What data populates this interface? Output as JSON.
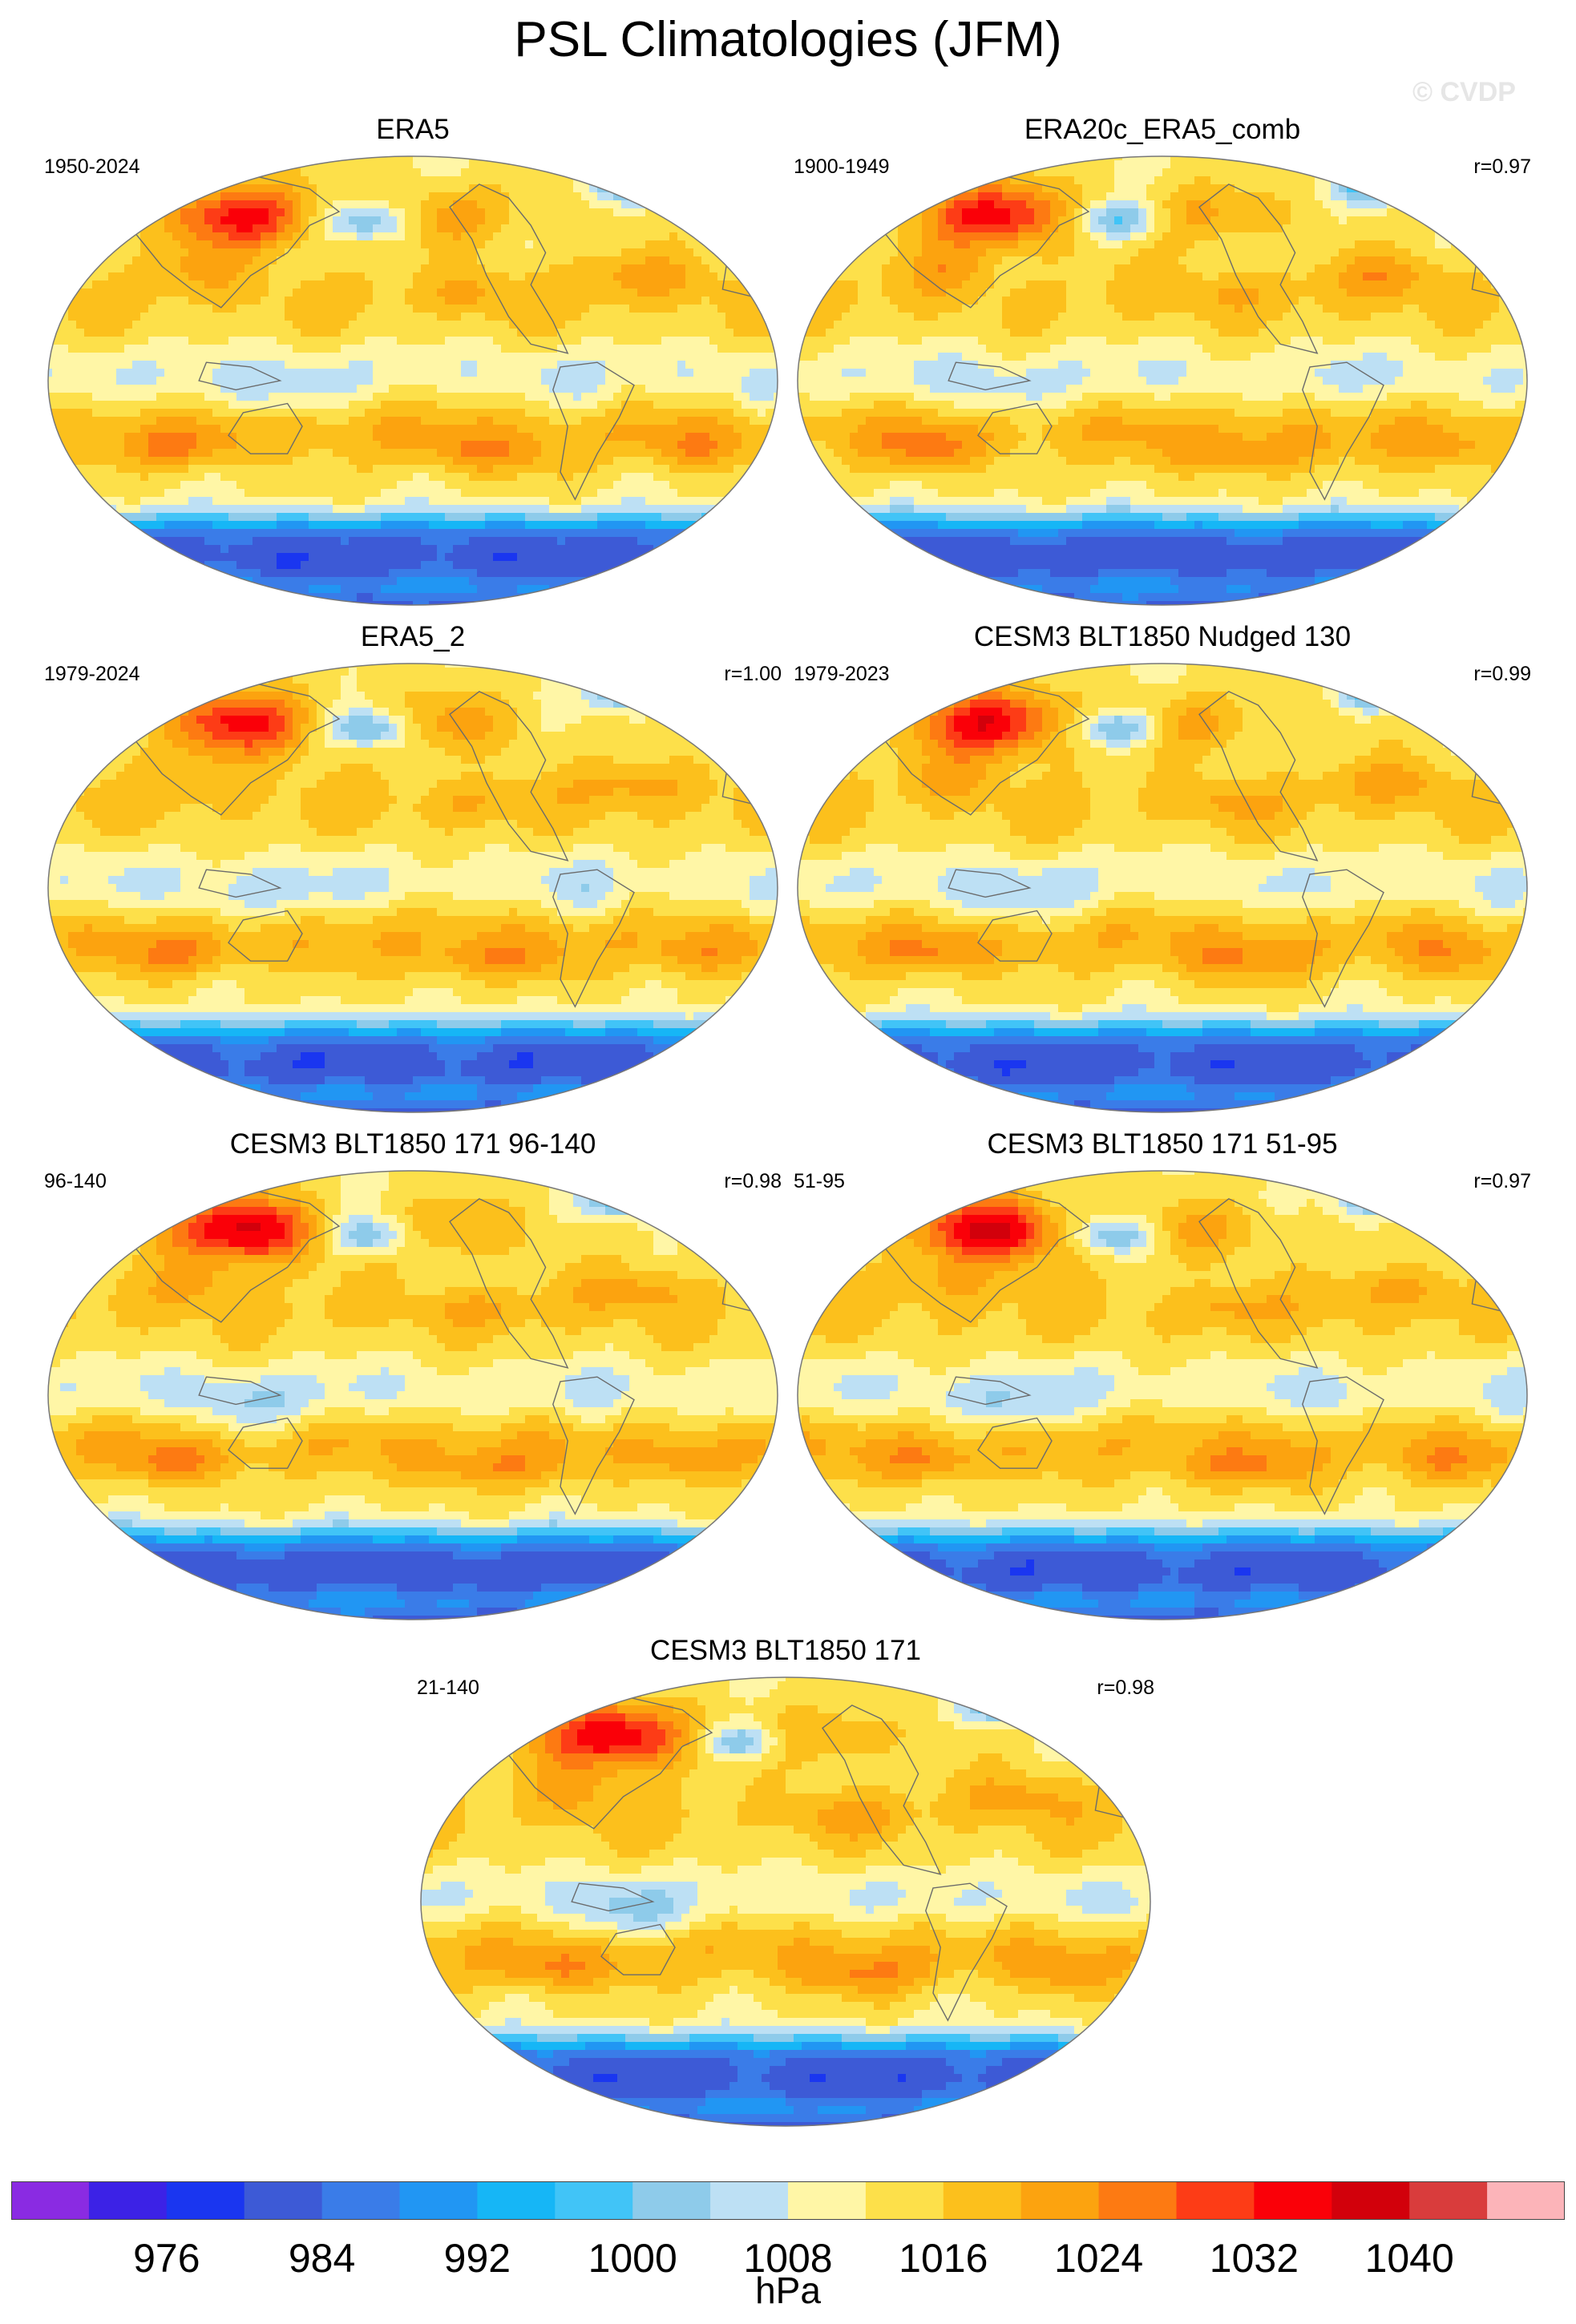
{
  "title": "PSL Climatologies (JFM)",
  "watermark": "© CVDP",
  "panels": [
    {
      "title": "ERA5",
      "years": "1950-2024",
      "corr": ""
    },
    {
      "title": "ERA20c_ERA5_comb",
      "years": "1900-1949",
      "corr": "r=0.97"
    },
    {
      "title": "ERA5_2",
      "years": "1979-2024",
      "corr": "r=1.00"
    },
    {
      "title": "CESM3 BLT1850 Nudged 130",
      "years": "1979-2023",
      "corr": "r=0.99"
    },
    {
      "title": "CESM3 BLT1850 171 96-140",
      "years": "96-140",
      "corr": "r=0.98"
    },
    {
      "title": "CESM3 BLT1850 171 51-95",
      "years": "51-95",
      "corr": "r=0.97"
    },
    {
      "title": "CESM3 BLT1850 171",
      "years": "21-140",
      "corr": "r=0.98"
    }
  ],
  "chart_data": {
    "type": "heatmap",
    "title": "PSL Climatologies (JFM)",
    "variable": "PSL",
    "units": "hPa",
    "colorbar": {
      "levels": [
        972,
        976,
        980,
        984,
        988,
        992,
        996,
        1000,
        1004,
        1008,
        1012,
        1016,
        1020,
        1024,
        1028,
        1032,
        1036,
        1040,
        1044
      ],
      "tick_labels": [
        "976",
        "984",
        "992",
        "1000",
        "1008",
        "1016",
        "1024",
        "1032",
        "1040"
      ],
      "colors": [
        "#8a2be2",
        "#3c22e6",
        "#1a36f0",
        "#3d5ad6",
        "#3a7ce8",
        "#2196f3",
        "#16b6f6",
        "#41c4f7",
        "#8ecbea",
        "#bde0f4",
        "#fff6a6",
        "#fde04a",
        "#fcc01c",
        "#fca30f",
        "#fd7a12",
        "#fd3c16",
        "#fa0008",
        "#d2000b",
        "#d93c3c",
        "#fcb4b9"
      ]
    }
  }
}
